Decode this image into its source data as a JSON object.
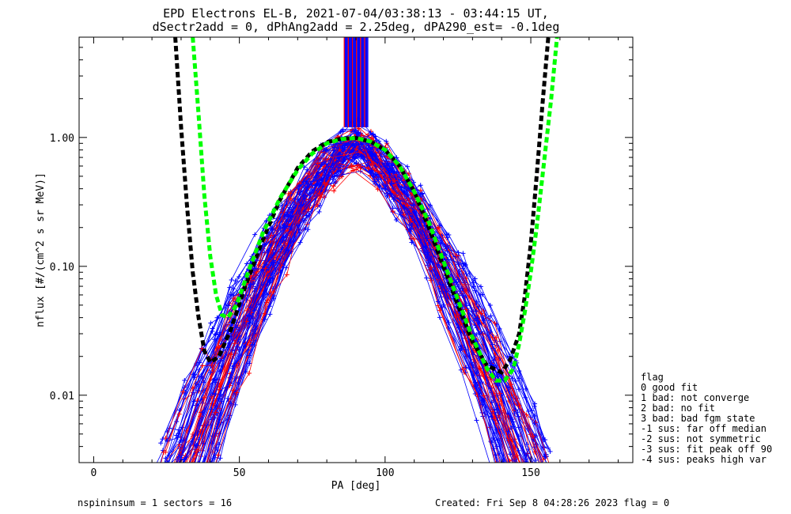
{
  "chart_data": {
    "type": "line",
    "title": "EPD Electrons EL-B, 2021-07-04/03:38:13 - 03:44:15 UT,",
    "subtitle": "dSectr2add = 0, dPhAng2add = 2.25deg, dPA290_est=  -0.1deg",
    "xlabel": "PA [deg]",
    "ylabel": "nflux [#/(cm^2 s sr MeV)]",
    "xlim": [
      -5,
      185
    ],
    "ylim": [
      0.003,
      6.0
    ],
    "yscale": "log",
    "x_ticks": [
      0,
      50,
      100,
      150
    ],
    "x_tick_labels": [
      "0",
      "50",
      "100",
      "150"
    ],
    "y_ticks": [
      0.01,
      0.1,
      1.0
    ],
    "y_tick_labels": [
      "0.01",
      "0.10",
      "1.00"
    ],
    "colors": {
      "data_red": "#ff0000",
      "data_blue": "#0000ff",
      "fit_black": "#000000",
      "fit_green": "#00ff00"
    },
    "series": [
      {
        "name": "",
        "color": "#000000",
        "style": "dashed",
        "x": [
          28,
          30,
          32,
          34,
          36,
          38,
          40,
          43,
          47,
          52,
          58,
          64,
          70,
          75,
          80,
          85,
          90,
          95,
          100,
          105,
          110,
          115,
          120,
          125,
          130,
          135,
          140,
          143,
          146,
          148,
          150,
          152,
          154,
          156
        ],
        "y": [
          6.0,
          1.2,
          0.3,
          0.09,
          0.04,
          0.022,
          0.018,
          0.02,
          0.032,
          0.07,
          0.16,
          0.33,
          0.58,
          0.78,
          0.92,
          0.98,
          0.99,
          0.93,
          0.8,
          0.6,
          0.38,
          0.2,
          0.1,
          0.05,
          0.026,
          0.017,
          0.015,
          0.019,
          0.03,
          0.06,
          0.15,
          0.5,
          1.8,
          6.0
        ]
      },
      {
        "name": "",
        "color": "#00ff00",
        "style": "dashed",
        "x": [
          34,
          36,
          38,
          40,
          42,
          44,
          46,
          49,
          53,
          58,
          64,
          70,
          75,
          80,
          85,
          90,
          95,
          100,
          105,
          110,
          115,
          120,
          125,
          130,
          135,
          138,
          141,
          144,
          146,
          148,
          150,
          152,
          154,
          157,
          159
        ],
        "y": [
          6.0,
          1.5,
          0.35,
          0.12,
          0.06,
          0.042,
          0.04,
          0.05,
          0.09,
          0.18,
          0.34,
          0.56,
          0.75,
          0.9,
          0.97,
          0.99,
          0.93,
          0.8,
          0.6,
          0.38,
          0.22,
          0.11,
          0.055,
          0.028,
          0.016,
          0.013,
          0.013,
          0.016,
          0.025,
          0.045,
          0.09,
          0.2,
          0.5,
          2.0,
          6.0
        ]
      }
    ],
    "legend": {
      "title": "flag",
      "placement": "right",
      "entries": [
        " 0 good fit",
        " 1 bad: not converge",
        " 2 bad: no fit",
        " 3 bad: bad fgm state",
        "-1 sus: far off median",
        "-2 sus: not symmetric",
        "-3 sus: fit peak off 90",
        "-4 sus: peaks high var"
      ]
    },
    "footer_left": "nspininsum =  1  sectors = 16",
    "footer_right": "Created: Fri Sep  8 04:28:26 2023   flag = 0"
  }
}
